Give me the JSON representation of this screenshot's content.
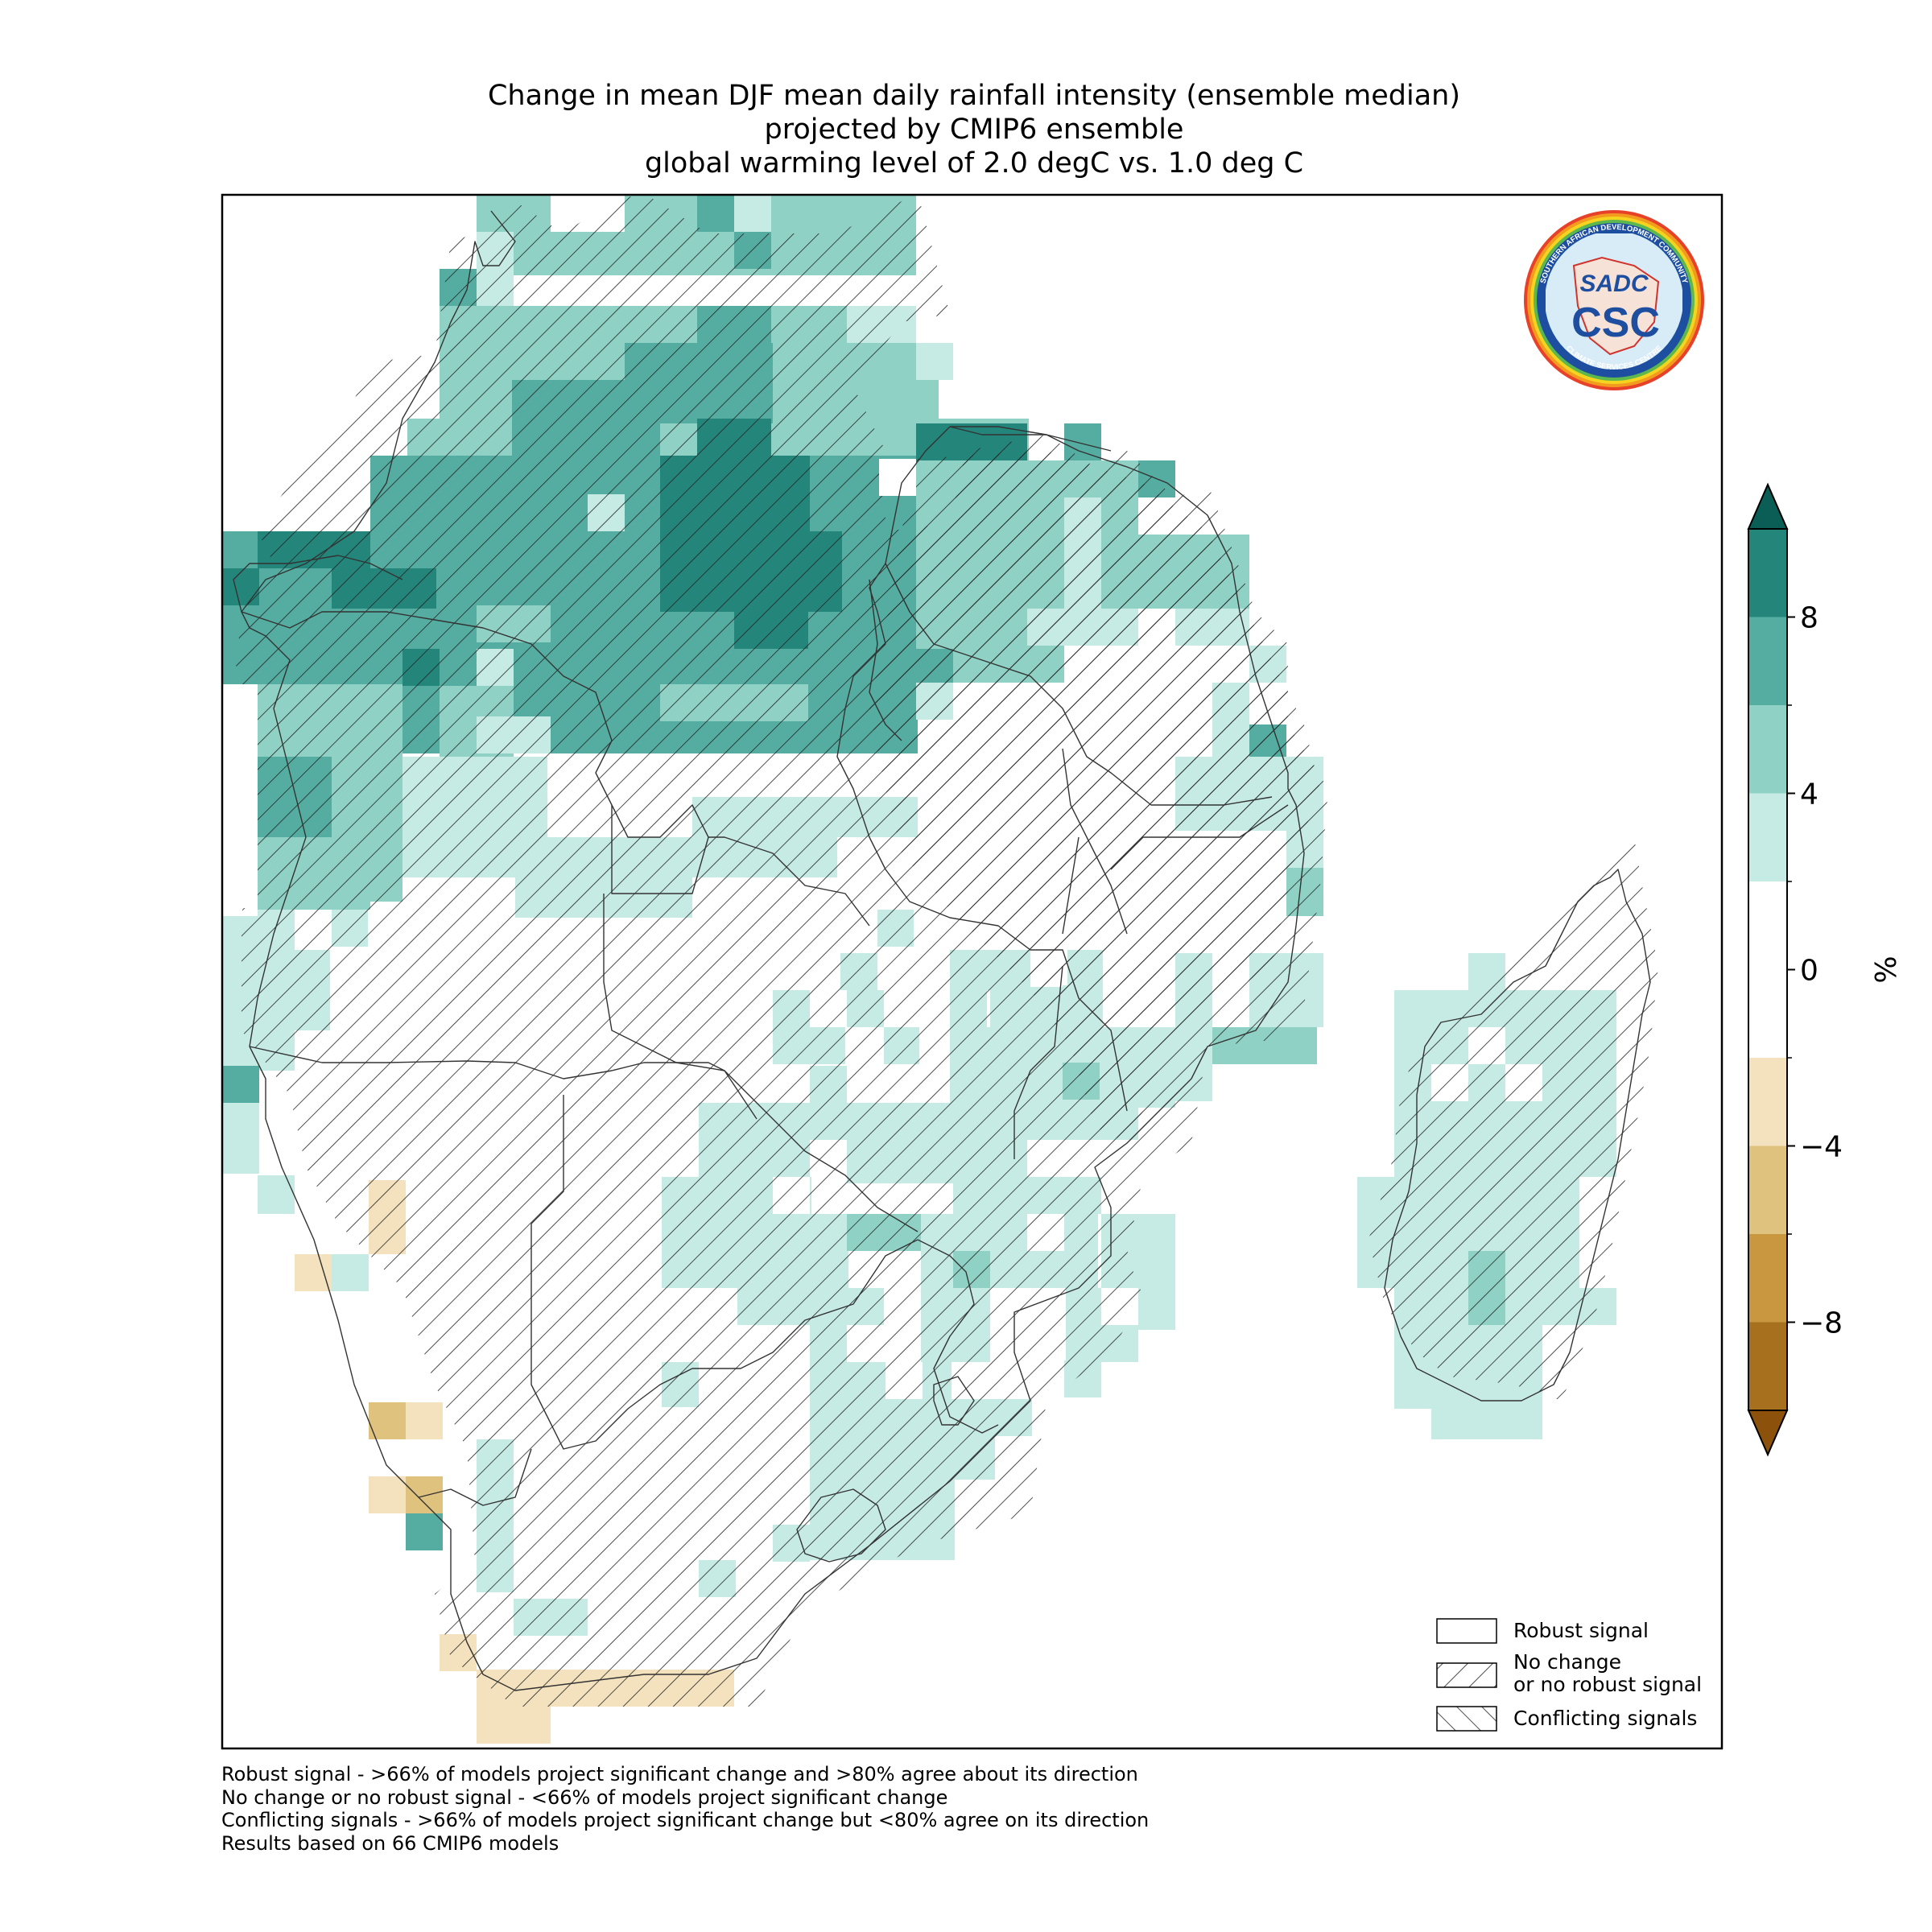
{
  "title": {
    "line1": "Change in mean DJF mean daily rainfall intensity (ensemble median)",
    "line2": "projected by CMIP6 ensemble",
    "line3": "global warming level of 2.0 degC vs. 1.0 deg C"
  },
  "logo": {
    "main_text": "CSC",
    "monogram": "SADC",
    "ring_text_top": "SOUTHERN AFRICAN DEVELOPMENT COMMUNITY",
    "ring_text_bottom": "CLIMATE SERVICES CENTRE"
  },
  "colorbar": {
    "label": "%",
    "ticks": [
      "8",
      "4",
      "0",
      "−4",
      "−8"
    ],
    "tick_values": [
      8,
      4,
      0,
      -4,
      -8
    ],
    "levels": [
      -10,
      -8,
      -6,
      -4,
      -2,
      2,
      4,
      6,
      8,
      10
    ],
    "colors": [
      "#a6701f",
      "#c8973f",
      "#dfc27d",
      "#f3e2bd",
      "#ffffff",
      "#c6ebe5",
      "#8fd2c5",
      "#55ada1",
      "#24857a"
    ],
    "extend_low": "#8c510a",
    "extend_high": "#0b5e56"
  },
  "legend": {
    "items": [
      {
        "label": "Robust signal",
        "hatch": "none"
      },
      {
        "label_line1": "No change",
        "label_line2": "or no robust signal",
        "hatch": "forward"
      },
      {
        "label": "Conflicting signals",
        "hatch": "back"
      }
    ],
    "placement": "bottom-right"
  },
  "footnotes": [
    "Robust signal - >66% of models project significant change and >80% agree about its direction",
    "No change or no robust signal - <66% of models project significant change",
    "Conflicting signals - >66% of models project significant change but <80% agree on its direction",
    "Results based on 66 CMIP6 models"
  ]
}
